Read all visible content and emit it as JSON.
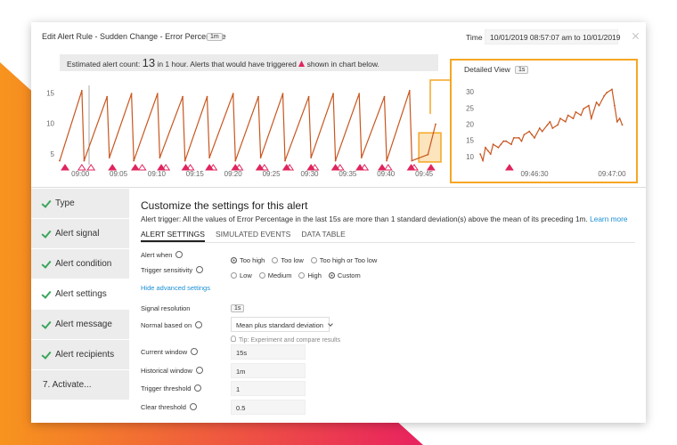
{
  "header": {
    "title": "Edit Alert Rule - Sudden Change - Error Percentage",
    "badge": "1m",
    "time_label": "Time",
    "time_value": "10/01/2019 08:57:07 am to 10/01/2019"
  },
  "banner": {
    "prefix": "Estimated alert count:",
    "count": "13",
    "middle": "in 1 hour. Alerts that would have triggered",
    "suffix": "shown in chart below."
  },
  "main_chart": {
    "type": "line",
    "color": "#c8561f",
    "marker_color": "#e0245e",
    "x": [
      -2.7,
      0.2,
      0.5,
      3.5,
      3.8,
      6.7,
      7.0,
      10.1,
      10.4,
      13.4,
      13.7,
      16.6,
      16.9,
      20.0,
      20.3,
      23.3,
      23.6,
      26.5,
      26.8,
      29.9,
      30.2,
      33.1,
      33.4,
      36.5,
      36.8,
      39.8,
      40.1,
      43.1,
      43.4,
      45.5,
      46.5
    ],
    "values": [
      4,
      15.5,
      4,
      14.5,
      4.5,
      15,
      4,
      15,
      4.5,
      14.5,
      4,
      14.5,
      4.5,
      15,
      4,
      14.5,
      4.5,
      15,
      4,
      14.5,
      4.5,
      15,
      4,
      15,
      4.5,
      14.5,
      4,
      15.5,
      4,
      5,
      10
    ],
    "xlim": [
      -2.7,
      47.2
    ],
    "ylim": [
      3.5,
      16.5
    ],
    "yticks": [
      5,
      10,
      15
    ],
    "xticks": [
      {
        "value": 0,
        "label": "09:00"
      },
      {
        "value": 5,
        "label": "09:05"
      },
      {
        "value": 10,
        "label": "09:10"
      },
      {
        "value": 15,
        "label": "09:15"
      },
      {
        "value": 20,
        "label": "09:20"
      },
      {
        "value": 25,
        "label": "09:25"
      },
      {
        "value": 30,
        "label": "09:30"
      },
      {
        "value": 35,
        "label": "09:35"
      },
      {
        "value": 40,
        "label": "09:40"
      },
      {
        "value": 45,
        "label": "09:45"
      }
    ],
    "alerts_filled": [
      -2.0,
      4.2,
      7.2,
      10.6,
      13.8,
      16.9,
      20.3,
      23.5,
      27.0,
      30.2,
      33.4,
      36.6,
      39.5,
      43.3,
      45.9
    ],
    "alerts_outline": [
      0.2,
      1.4,
      8.1,
      11.2,
      14.4,
      17.4,
      20.8,
      24.1,
      27.4,
      30.7,
      34.0,
      37.2,
      40.3,
      43.7
    ],
    "selection": [
      44.3,
      47.2
    ],
    "selection_color": "#f5a623"
  },
  "detail_chart": {
    "type": "line",
    "title": "Detailed View",
    "badge": "1s",
    "color": "#c8561f",
    "marker_color": "#e0245e",
    "x": [
      9,
      10,
      11,
      12,
      13,
      14,
      16,
      17,
      18,
      19,
      21,
      22,
      24,
      25,
      26,
      28,
      29,
      30,
      32,
      33,
      35,
      36,
      37,
      39,
      40,
      42,
      43,
      45,
      46,
      48,
      49,
      51,
      52,
      54,
      55,
      57,
      58,
      60,
      61,
      62,
      63,
      64
    ],
    "values": [
      11,
      9,
      13,
      12,
      11,
      14,
      13,
      14,
      15,
      15,
      14,
      16,
      16,
      15,
      17,
      18,
      17,
      16,
      19,
      18,
      20,
      21,
      19,
      20,
      22,
      21,
      23,
      22,
      24,
      23,
      25,
      26,
      22,
      27,
      26,
      29,
      30,
      31,
      26,
      21,
      22,
      20
    ],
    "xlim": [
      8.6,
      64.5
    ],
    "ylim": [
      8,
      32.5
    ],
    "yticks": [
      10,
      15,
      20,
      25,
      30
    ],
    "xticks": [
      {
        "value": 30,
        "label": "09:46:30"
      },
      {
        "value": 60,
        "label": "09:47:00"
      }
    ],
    "alerts_filled": [
      20.3
    ],
    "alerts_outline": []
  },
  "nav": [
    {
      "label": "Type",
      "done": true
    },
    {
      "label": "Alert signal",
      "done": true
    },
    {
      "label": "Alert condition",
      "done": true
    },
    {
      "label": "Alert settings",
      "done": true,
      "active": true
    },
    {
      "label": "Alert message",
      "done": true
    },
    {
      "label": "Alert recipients",
      "done": true
    },
    {
      "label": "7. Activate...",
      "done": false
    }
  ],
  "content": {
    "heading": "Customize the settings for this alert",
    "trigger_text": "Alert trigger: All the values of Error Percentage in the last 15s are more than 1 standard deviation(s) above the mean of its preceding 1m.",
    "learn_more": "Learn more",
    "tabs": [
      "ALERT SETTINGS",
      "SIMULATED EVENTS",
      "DATA TABLE"
    ],
    "active_tab": 0,
    "alert_when": {
      "label": "Alert when",
      "options": [
        "Too high",
        "Too low",
        "Too high or Too low"
      ],
      "selected": 0
    },
    "sensitivity": {
      "label": "Trigger sensitivity",
      "options": [
        "Low",
        "Medium",
        "High",
        "Custom"
      ],
      "selected": 3
    },
    "advanced_link": "Hide advanced settings",
    "signal_resolution": {
      "label": "Signal resolution",
      "value": "1s"
    },
    "normal_based_on": {
      "label": "Normal based on",
      "value": "Mean plus standard deviation"
    },
    "tip": "Tip: Experiment and compare results",
    "inputs": [
      {
        "label": "Current window",
        "value": "15s"
      },
      {
        "label": "Historical window",
        "value": "1m"
      },
      {
        "label": "Trigger threshold",
        "value": "1"
      },
      {
        "label": "Clear threshold",
        "value": "0.5"
      }
    ]
  }
}
